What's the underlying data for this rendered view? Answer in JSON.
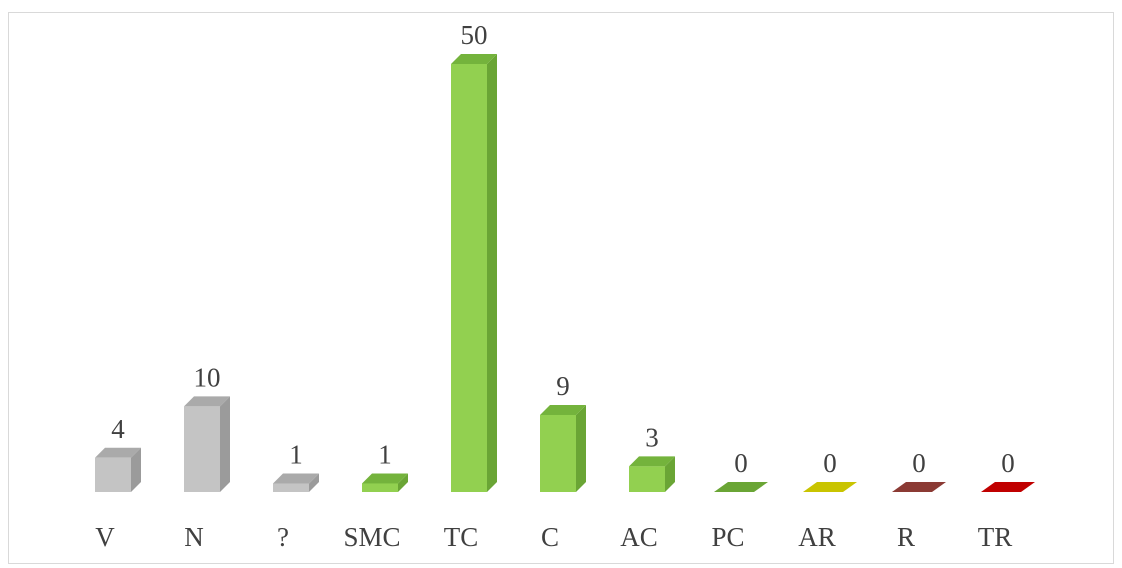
{
  "chart_data": {
    "type": "bar",
    "style": "3d-column",
    "categories": [
      "V",
      "N",
      "?",
      "SMC",
      "TC",
      "C",
      "AC",
      "PC",
      "AR",
      "R",
      "TR"
    ],
    "values": [
      4,
      10,
      1,
      1,
      50,
      9,
      3,
      0,
      0,
      0,
      0
    ],
    "data_labels": [
      "4",
      "10",
      "1",
      "1",
      "50",
      "9",
      "3",
      "0",
      "0",
      "0",
      "0"
    ],
    "colors": {
      "V": {
        "front": "#c4c4c4",
        "side": "#9b9b9b",
        "top": "#aaaaaa"
      },
      "N": {
        "front": "#c4c4c4",
        "side": "#9b9b9b",
        "top": "#aaaaaa"
      },
      "?": {
        "front": "#c4c4c4",
        "side": "#9b9b9b",
        "top": "#aaaaaa"
      },
      "SMC": {
        "front": "#92d050",
        "side": "#6aa535",
        "top": "#74b33c"
      },
      "TC": {
        "front": "#92d050",
        "side": "#6aa535",
        "top": "#74b33c"
      },
      "C": {
        "front": "#92d050",
        "side": "#6aa535",
        "top": "#74b33c"
      },
      "AC": {
        "front": "#92d050",
        "side": "#6aa535",
        "top": "#74b33c"
      },
      "PC": {
        "front": "#6aa535",
        "side": "#4e7f26",
        "top": "#6aa535"
      },
      "AR": {
        "front": "#c9c400",
        "side": "#a39e00",
        "top": "#c9c400"
      },
      "R": {
        "front": "#8b3a34",
        "side": "#6e2a25",
        "top": "#8b3a34"
      },
      "TR": {
        "front": "#c00000",
        "side": "#940000",
        "top": "#c00000"
      }
    },
    "title": "",
    "xlabel": "",
    "ylabel": "",
    "ylim": [
      0,
      50
    ],
    "grid": false,
    "legend": "none"
  }
}
